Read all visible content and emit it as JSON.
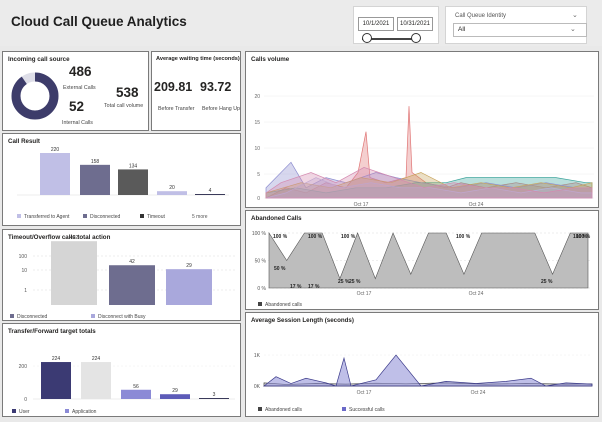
{
  "header": {
    "title": "Cloud Call Queue Analytics"
  },
  "date_slicer": {
    "start": "10/1/2021",
    "end": "10/31/2021"
  },
  "queue_slicer": {
    "label": "Call Queue Identity",
    "value": "All"
  },
  "incoming": {
    "title": "Incoming call source",
    "external_value": "486",
    "external_label": "External Calls",
    "total_value": "538",
    "total_label": "Total call volume",
    "internal_value": "52",
    "internal_label": "Internal Calls",
    "donut_external_fraction": 0.903
  },
  "waiting": {
    "title": "Average waiting time (seconds)",
    "transfer_value": "209.81",
    "transfer_label": "Before Transfer",
    "hangup_value": "93.72",
    "hangup_label": "Before Hang Up"
  },
  "call_result": {
    "title": "Call Result",
    "chart_data": {
      "type": "bar",
      "values": [
        220,
        158,
        134,
        20,
        4
      ],
      "colors": [
        "#c0bfe6",
        "#6e6d8f",
        "#5a5a5a",
        "#c0bfe6",
        "#3a3a5a"
      ],
      "ylim": [
        0,
        220
      ],
      "data_labels": [
        "220",
        "158",
        "134",
        "20",
        "4"
      ]
    },
    "legend": [
      "Transferred to Agent",
      "Disconnected",
      "Timeout"
    ],
    "legend_colors": [
      "#c0bfe6",
      "#6e6d8f",
      "#333333"
    ],
    "more": "5 more"
  },
  "timeout": {
    "title": "Timeout/Overflow calls total action",
    "chart_data": {
      "type": "bar",
      "scale": "log",
      "values": [
        402,
        42,
        29
      ],
      "colors": [
        "#d5d5d5",
        "#6e6d8f",
        "#a9a8dc"
      ],
      "yticks": [
        "100",
        "10",
        "1"
      ],
      "data_labels": [
        "402",
        "42",
        "29"
      ]
    },
    "legend": [
      "Disconnected",
      "Disconnect with Busy"
    ],
    "legend_colors": [
      "#6e6d8f",
      "#a9a8dc"
    ]
  },
  "transfer": {
    "title": "Transfer/Forward target totals",
    "chart_data": {
      "type": "bar",
      "values": [
        224,
        224,
        56,
        29,
        3
      ],
      "colors": [
        "#3b3a73",
        "#e4e4e4",
        "#8b8ad6",
        "#5d5cb8",
        "#3a3a5a"
      ],
      "ylim": [
        0,
        224
      ],
      "yticks": [
        "200",
        "0"
      ],
      "data_labels": [
        "224",
        "224",
        "56",
        "29",
        "3"
      ]
    },
    "legend": [
      "User",
      "Application"
    ],
    "legend_colors": [
      "#3b3a73",
      "#8b8ad6"
    ]
  },
  "calls_volume": {
    "title": "Calls volume",
    "chart_data": {
      "type": "area",
      "yticks": [
        "20",
        "15",
        "10",
        "5",
        "0"
      ],
      "ylim": [
        0,
        20
      ],
      "xticks": [
        "Oct 17",
        "Oct 24"
      ],
      "series_colors": [
        "#e07575",
        "#3aa39a",
        "#8c8ccf",
        "#c7a35a",
        "#b5b5e0",
        "#d48ab0"
      ]
    }
  },
  "abandoned": {
    "title": "Abandoned Calls",
    "chart_data": {
      "type": "area",
      "yticks": [
        "100 %",
        "50 %",
        "0 %"
      ],
      "ylim": [
        0,
        100
      ],
      "xticks": [
        "Oct 17",
        "Oct 24"
      ],
      "annotations": [
        "100 %",
        "100 %",
        "100 %",
        "50 %",
        "25 %",
        "17 %",
        "17 %",
        "25 %",
        "100 %",
        "100 %",
        "25 %",
        "100 %"
      ],
      "values": [
        100,
        50,
        100,
        100,
        17,
        100,
        17,
        100,
        25,
        100,
        100,
        25,
        100,
        100,
        100,
        100,
        25,
        100,
        100
      ]
    },
    "legend": [
      "Abandoned calls"
    ]
  },
  "session": {
    "title": "Average Session Length (seconds)",
    "chart_data": {
      "type": "area",
      "yticks": [
        "1K",
        "0K"
      ],
      "xticks": [
        "Oct 17",
        "Oct 24"
      ],
      "ylim": [
        0,
        1000
      ]
    },
    "legend": [
      "Abandoned calls",
      "Successful calls"
    ],
    "legend_colors": [
      "#444444",
      "#6a69c8"
    ]
  }
}
